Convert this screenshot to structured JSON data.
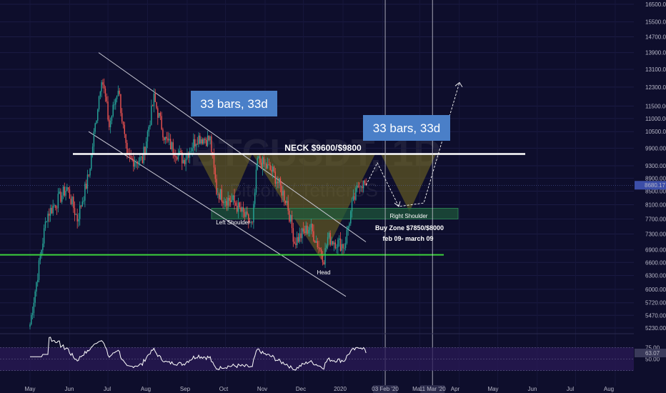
{
  "chart_data": {
    "type": "candlestick",
    "title": "",
    "watermark": {
      "symbol": "BTCUSDT, 1D",
      "name": "Bitcoin / TetherUS"
    },
    "price_axis": {
      "ticks": [
        5230,
        5470,
        5720,
        6000,
        6300,
        6600,
        6900,
        7300,
        7700,
        8100,
        8500,
        8900,
        9300,
        9900,
        10500,
        11000,
        11500,
        12300,
        13100,
        13900,
        14700,
        15500,
        16500
      ],
      "tick_labels": [
        "5230.00",
        "5470.00",
        "5720.00",
        "6000.00",
        "6300.00",
        "6600.00",
        "6900.00",
        "7300.00",
        "7700.00",
        "8100.00",
        "8500.00",
        "8900.00",
        "9300.00",
        "9900.00",
        "10500.00",
        "11000.00",
        "11500.00",
        "12300.00",
        "13100.00",
        "13900.00",
        "14700.00",
        "15500.00",
        "16500.00"
      ],
      "current_price": 8680.17,
      "current_price_label": "8680.17"
    },
    "time_axis": {
      "labels": [
        "May",
        "Jun",
        "Jul",
        "Aug",
        "Sep",
        "Oct",
        "Nov",
        "Dec",
        "2020",
        "Feb",
        "Mar",
        "Apr",
        "May",
        "Jun",
        "Jul",
        "Aug"
      ],
      "highlighted": [
        "03 Feb '20",
        "11 Mar '20"
      ]
    },
    "close_anchors": [
      {
        "date": "2019-05-01",
        "close": 5300
      },
      {
        "date": "2019-05-14",
        "close": 7800
      },
      {
        "date": "2019-05-30",
        "close": 8600
      },
      {
        "date": "2019-06-07",
        "close": 7700
      },
      {
        "date": "2019-06-16",
        "close": 9000
      },
      {
        "date": "2019-06-26",
        "close": 12800
      },
      {
        "date": "2019-06-29",
        "close": 11800
      },
      {
        "date": "2019-07-02",
        "close": 10700
      },
      {
        "date": "2019-07-09",
        "close": 12300
      },
      {
        "date": "2019-07-16",
        "close": 9500
      },
      {
        "date": "2019-07-28",
        "close": 9500
      },
      {
        "date": "2019-08-06",
        "close": 11800
      },
      {
        "date": "2019-08-15",
        "close": 10200
      },
      {
        "date": "2019-08-29",
        "close": 9500
      },
      {
        "date": "2019-09-09",
        "close": 10300
      },
      {
        "date": "2019-09-19",
        "close": 10200
      },
      {
        "date": "2019-09-24",
        "close": 8500
      },
      {
        "date": "2019-09-30",
        "close": 8300
      },
      {
        "date": "2019-10-07",
        "close": 8200
      },
      {
        "date": "2019-10-22",
        "close": 7500
      },
      {
        "date": "2019-10-26",
        "close": 9500
      },
      {
        "date": "2019-11-07",
        "close": 9100
      },
      {
        "date": "2019-11-18",
        "close": 8200
      },
      {
        "date": "2019-11-24",
        "close": 7100
      },
      {
        "date": "2019-12-06",
        "close": 7500
      },
      {
        "date": "2019-12-17",
        "close": 6700
      },
      {
        "date": "2019-12-20",
        "close": 7200
      },
      {
        "date": "2020-01-02",
        "close": 7000
      },
      {
        "date": "2020-01-08",
        "close": 8050
      },
      {
        "date": "2020-01-14",
        "close": 8800
      },
      {
        "date": "2020-01-19",
        "close": 8680
      }
    ],
    "rsi": {
      "ticks": [
        25,
        50,
        75
      ],
      "tick_labels": [
        "25.00",
        "50.00",
        "75.00"
      ],
      "current": 63.07,
      "current_label": "63.07"
    },
    "annotations": {
      "neckline": {
        "price": 9700,
        "label": "NECK $9600/$9800"
      },
      "support_line": {
        "price": 6780
      },
      "buy_zone": {
        "low": 7850,
        "high": 8000,
        "label": "Buy Zone $7850/$8000"
      },
      "box_left": "33 bars, 33d",
      "box_right": "33 bars, 33d",
      "left_shoulder": "Left Shoulder",
      "head": "Head",
      "right_shoulder": "Right Shoulder",
      "date_range": "feb 09- march 09"
    },
    "colors": {
      "up": "#26a69a",
      "down": "#ef5350",
      "background": "#0e0e2c",
      "neckline": "#ffffff",
      "support": "#3cd23c",
      "box": "#4a7fc8",
      "triangle": "#7a7020",
      "rsi_band": "#2a1a55",
      "price_tag": "#3c4ea8"
    }
  }
}
